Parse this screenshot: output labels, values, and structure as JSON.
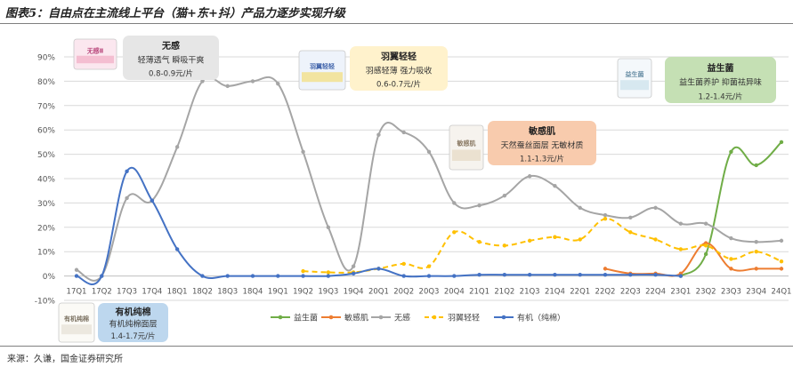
{
  "title": "图表5：自由点在主流线上平台（猫+东+抖）产品力逐步实现升级",
  "source": "来源：久谦，国金证券研究所",
  "chart_data": {
    "type": "line",
    "x": [
      "17Q1",
      "17Q2",
      "17Q3",
      "17Q4",
      "18Q1",
      "18Q2",
      "18Q3",
      "18Q4",
      "19Q1",
      "19Q2",
      "19Q3",
      "19Q4",
      "20Q1",
      "20Q2",
      "20Q3",
      "20Q4",
      "21Q1",
      "21Q2",
      "21Q3",
      "21Q4",
      "22Q1",
      "22Q2",
      "22Q3",
      "22Q4",
      "23Q1",
      "23Q2",
      "23Q3",
      "23Q4",
      "24Q1"
    ],
    "ylim": [
      -10,
      90
    ],
    "yticks": [
      "-10%",
      "0%",
      "10%",
      "20%",
      "30%",
      "40%",
      "50%",
      "60%",
      "70%",
      "80%",
      "90%"
    ],
    "ytick_values": [
      -10,
      0,
      10,
      20,
      30,
      40,
      50,
      60,
      70,
      80,
      90
    ],
    "grid": "horizontal",
    "legend_position": "bottom-center",
    "series": [
      {
        "name": "益生菌",
        "color": "#70ad47",
        "dash": false,
        "values": [
          null,
          null,
          null,
          null,
          null,
          null,
          null,
          null,
          null,
          null,
          null,
          null,
          null,
          null,
          null,
          null,
          null,
          null,
          null,
          null,
          null,
          null,
          null,
          null,
          0,
          9,
          51,
          45.5,
          55
        ]
      },
      {
        "name": "敏感肌",
        "color": "#ed7d31",
        "dash": false,
        "values": [
          null,
          null,
          null,
          null,
          null,
          null,
          null,
          null,
          null,
          null,
          null,
          null,
          null,
          null,
          null,
          null,
          null,
          null,
          null,
          null,
          null,
          3,
          1,
          1,
          1,
          13.5,
          3,
          3,
          3
        ]
      },
      {
        "name": "无感",
        "color": "#a5a5a5",
        "dash": false,
        "values": [
          2.5,
          0,
          32,
          31,
          53,
          80,
          78,
          80,
          79,
          51,
          20,
          4,
          58,
          59,
          51,
          30,
          29,
          33,
          41,
          37,
          28,
          25,
          24,
          28,
          21.5,
          21.5,
          15.5,
          14,
          14.5
        ]
      },
      {
        "name": "羽翼轻轻",
        "color": "#ffc000",
        "dash": true,
        "values": [
          null,
          null,
          null,
          null,
          null,
          null,
          null,
          null,
          null,
          2,
          1.5,
          1.5,
          3,
          5,
          4,
          18,
          14,
          12.5,
          14.5,
          16,
          15,
          23.5,
          18,
          15,
          11,
          12.5,
          7,
          10,
          6
        ]
      },
      {
        "name": "有机（纯棉）",
        "color": "#4472c4",
        "dash": false,
        "values": [
          0,
          0,
          43,
          31,
          11,
          0,
          0,
          0,
          0,
          0,
          0,
          1,
          3,
          0,
          0,
          0,
          0.5,
          0.5,
          0.5,
          0.5,
          0.5,
          0.5,
          0.5,
          0.5,
          0,
          null,
          null,
          null,
          null
        ]
      }
    ],
    "annotations": [
      {
        "key": "wugan",
        "title": "无感",
        "line1": "轻薄透气 瞬吸干爽",
        "line2": "0.8-0.9元/片",
        "color": "#e6e6e6"
      },
      {
        "key": "yuyi",
        "title": "羽翼轻轻",
        "line1": "羽感轻薄 强力吸收",
        "line2": "0.6-0.7元/片",
        "color": "#fff2cc"
      },
      {
        "key": "mingan",
        "title": "敏感肌",
        "line1": "天然蚕丝面层 无敏材质",
        "line2": "1.1-1.3元/片",
        "color": "#f8cbad"
      },
      {
        "key": "yishengjun",
        "title": "益生菌",
        "line1": "益生菌养护 抑菌祛异味",
        "line2": "1.2-1.4元/片",
        "color": "#c5e0b4"
      },
      {
        "key": "youji",
        "title": "有机纯棉",
        "line1": "有机纯棉面层",
        "line2": "1.4-1.7元/片",
        "color": "#bdd7ee"
      }
    ],
    "product_images": {
      "wugan": "无感Ⅱ",
      "yuyi": "羽翼轻轻",
      "mingan": "敏感肌",
      "yishengjun": "益生菌",
      "youji": "有机纯棉"
    }
  }
}
